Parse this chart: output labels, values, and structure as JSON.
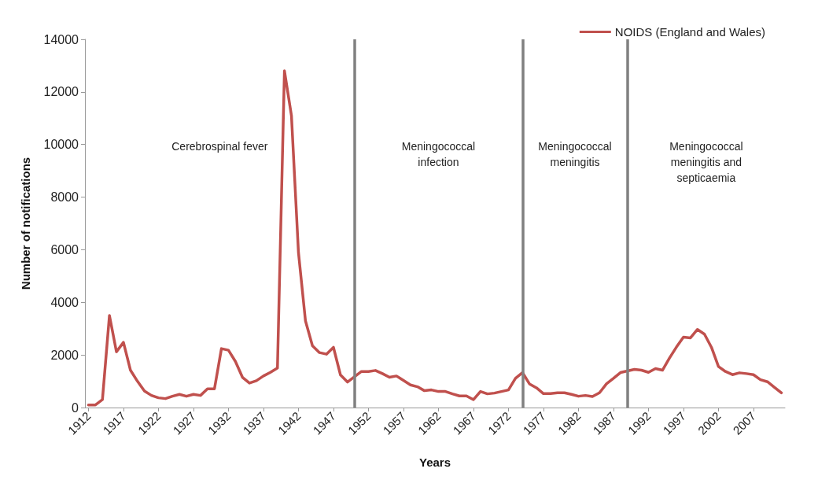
{
  "chart_data": {
    "type": "line",
    "xlabel": "Years",
    "ylabel": "Number of notifications",
    "x": [
      1912,
      1913,
      1914,
      1915,
      1916,
      1917,
      1918,
      1919,
      1920,
      1921,
      1922,
      1923,
      1924,
      1925,
      1926,
      1927,
      1928,
      1929,
      1930,
      1931,
      1932,
      1933,
      1934,
      1935,
      1936,
      1937,
      1938,
      1939,
      1940,
      1941,
      1942,
      1943,
      1944,
      1945,
      1946,
      1947,
      1948,
      1949,
      1950,
      1951,
      1952,
      1953,
      1954,
      1955,
      1956,
      1957,
      1958,
      1959,
      1960,
      1961,
      1962,
      1963,
      1964,
      1965,
      1966,
      1967,
      1968,
      1969,
      1970,
      1971,
      1972,
      1973,
      1974,
      1975,
      1976,
      1977,
      1978,
      1979,
      1980,
      1981,
      1982,
      1983,
      1984,
      1985,
      1986,
      1987,
      1988,
      1989,
      1990,
      1991,
      1992,
      1993,
      1994,
      1995,
      1996,
      1997,
      1998,
      1999,
      2000,
      2001,
      2002,
      2003,
      2004,
      2005,
      2006,
      2007,
      2008,
      2009,
      2010,
      2011
    ],
    "series": [
      {
        "name": "NOIDS (England and Wales)",
        "color": "#c0504d",
        "values": [
          100,
          100,
          300,
          3500,
          2120,
          2480,
          1420,
          1000,
          630,
          460,
          370,
          340,
          430,
          500,
          430,
          500,
          460,
          710,
          710,
          2240,
          2180,
          1750,
          1150,
          930,
          1020,
          1200,
          1340,
          1500,
          12800,
          11100,
          5900,
          3300,
          2350,
          2090,
          2030,
          2290,
          1240,
          970,
          1170,
          1370,
          1370,
          1410,
          1290,
          1150,
          1200,
          1030,
          860,
          790,
          640,
          670,
          610,
          610,
          520,
          440,
          440,
          300,
          610,
          520,
          550,
          610,
          670,
          1110,
          1330,
          900,
          750,
          530,
          530,
          560,
          560,
          500,
          430,
          460,
          420,
          560,
          900,
          1110,
          1330,
          1390,
          1450,
          1420,
          1340,
          1480,
          1420,
          1880,
          2300,
          2680,
          2650,
          2970,
          2790,
          2290,
          1560,
          1370,
          1250,
          1320,
          1290,
          1250,
          1060,
          980,
          770,
          560
        ]
      }
    ],
    "xlim": [
      1911.5,
      2011.5
    ],
    "xticks": [
      1912,
      1917,
      1922,
      1927,
      1932,
      1937,
      1942,
      1947,
      1952,
      1957,
      1962,
      1967,
      1972,
      1977,
      1982,
      1987,
      1992,
      1997,
      2002,
      2007
    ],
    "ylim": [
      0,
      14000
    ],
    "yticks": [
      0,
      2000,
      4000,
      6000,
      8000,
      10000,
      12000,
      14000
    ],
    "ref_lines": [
      {
        "axis": "x",
        "value": 1950,
        "color": "#808080"
      },
      {
        "axis": "x",
        "value": 1974,
        "color": "#808080"
      },
      {
        "axis": "x",
        "value": 1989,
        "color": "#808080"
      }
    ],
    "annotations": [
      "Cerebrospinal fever",
      "Meningococcal\ninfection",
      "Meningococcal\nmeningitis",
      "Meningococcal\nmeningitis and\nsepticaemia"
    ],
    "grid": false,
    "legend": "top right",
    "marker": "none",
    "line_style": "solid"
  }
}
